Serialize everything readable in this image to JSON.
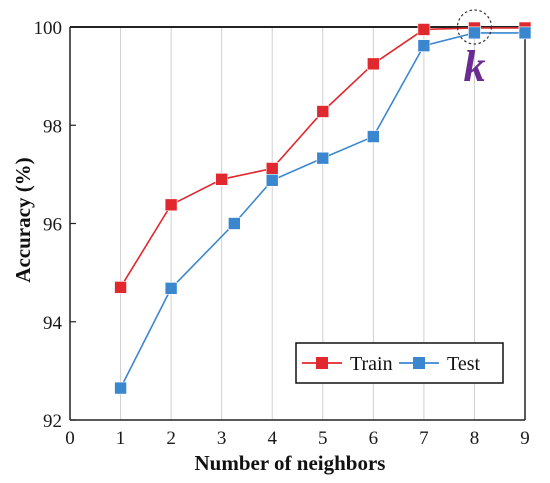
{
  "chart_data": {
    "type": "line",
    "xlabel": "Number of neighbors",
    "ylabel": "Accuracy (%)",
    "xlim": [
      0,
      9
    ],
    "ylim": [
      92,
      100
    ],
    "x_ticks": [
      "0",
      "1",
      "2",
      "3",
      "4",
      "5",
      "6",
      "7",
      "8",
      "9"
    ],
    "y_ticks": [
      "92",
      "94",
      "96",
      "98",
      "100"
    ],
    "grid": "vertical",
    "legend_position": "bottom-right",
    "highlight_tick": "8",
    "annotation": {
      "text": "k",
      "x": 8,
      "y": 100
    },
    "series": [
      {
        "name": "Train",
        "color": "#e0282e",
        "marker": "square",
        "points": [
          {
            "x": 1,
            "y": 94.7
          },
          {
            "x": 2,
            "y": 96.38
          },
          {
            "x": 3,
            "y": 96.9
          },
          {
            "x": 4,
            "y": 97.12
          },
          {
            "x": 5,
            "y": 98.28
          },
          {
            "x": 6,
            "y": 99.25
          },
          {
            "x": 7,
            "y": 99.95
          },
          {
            "x": 8,
            "y": 99.98
          },
          {
            "x": 9,
            "y": 99.98
          }
        ]
      },
      {
        "name": "Test",
        "color": "#3a87d0",
        "marker": "square",
        "points": [
          {
            "x": 1,
            "y": 92.65
          },
          {
            "x": 2,
            "y": 94.68
          },
          {
            "x": 3.25,
            "y": 96.0
          },
          {
            "x": 4,
            "y": 96.88
          },
          {
            "x": 5,
            "y": 97.33
          },
          {
            "x": 6,
            "y": 97.77
          },
          {
            "x": 7,
            "y": 99.62
          },
          {
            "x": 8,
            "y": 99.88
          },
          {
            "x": 9,
            "y": 99.88
          }
        ]
      }
    ],
    "colors": {
      "highlight": "#6a2c91",
      "grid": "#cfcfcf",
      "axis": "#222222"
    }
  }
}
